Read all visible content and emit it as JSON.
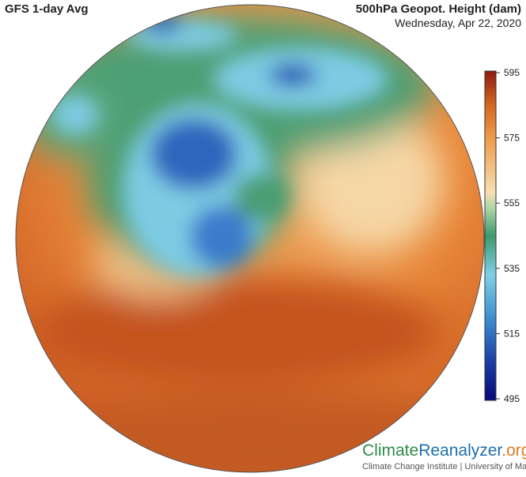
{
  "header": {
    "left_title": "GFS 1-day Avg",
    "right_title": "500hPa Geopot. Height (dam)",
    "date": "Wednesday, Apr 22, 2020"
  },
  "colorbar": {
    "range": [
      495,
      595
    ],
    "ticks": [
      495,
      515,
      535,
      555,
      575,
      595
    ]
  },
  "logo": {
    "part1": "Climate",
    "part2": "Reanalyzer",
    "part3": ".org",
    "subtitle": "Climate Change Institute | University of Maine"
  }
}
